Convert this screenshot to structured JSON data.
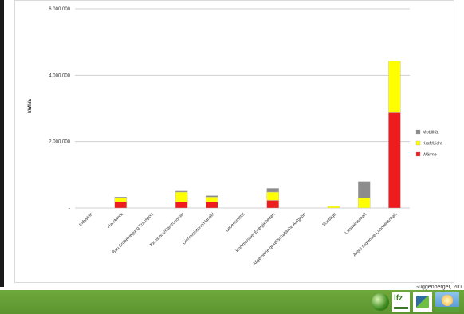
{
  "credit": "Guggenberger, 201",
  "colors": {
    "waerme": "#ee1c1c",
    "kraft_licht": "#ffff00",
    "mobilitaet": "#8c8c8c",
    "footer": "#5c9430"
  },
  "chart_data": {
    "type": "bar",
    "stacked": true,
    "title": "",
    "xlabel": "",
    "ylabel": "kWh/a",
    "ylim": [
      0,
      6000000
    ],
    "yticks": [
      "-",
      "2.000.000",
      "4.000.000",
      "6.000.000"
    ],
    "ytick_values": [
      0,
      2000000,
      4000000,
      6000000
    ],
    "grid": true,
    "legend_position": "right",
    "categories": [
      "Industrie",
      "Handwerk",
      "Bau Erdbewegung Transport",
      "Tourismus/Gastronomie",
      "Dienstleistung/Handel",
      "Lebensmittel",
      "Kommunaler Energiebedarf",
      "Allgemeine gesellschaftliche Aufgabe",
      "Sonstige",
      "Landwirtschaft",
      "Anteil regionale Landwirtschaft"
    ],
    "series": [
      {
        "name": "Wärme",
        "values": [
          0,
          190000,
          0,
          180000,
          180000,
          0,
          230000,
          0,
          0,
          0,
          2870000
        ]
      },
      {
        "name": "Kraft/Licht",
        "values": [
          0,
          110000,
          0,
          300000,
          150000,
          0,
          250000,
          0,
          50000,
          300000,
          1550000
        ]
      },
      {
        "name": "Mobilität",
        "values": [
          0,
          30000,
          0,
          30000,
          40000,
          0,
          110000,
          0,
          0,
          500000,
          0
        ]
      }
    ],
    "legend": [
      "Mobilität",
      "Kraft/Licht",
      "Wärme"
    ]
  }
}
